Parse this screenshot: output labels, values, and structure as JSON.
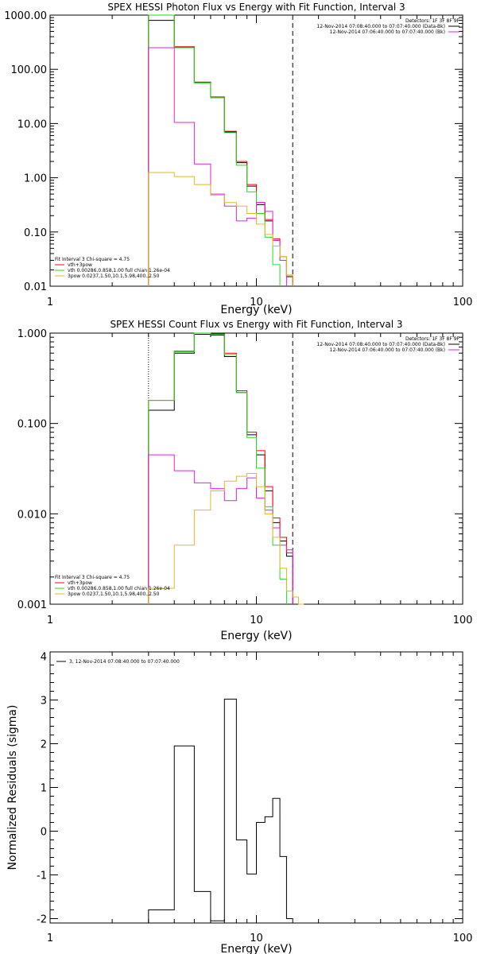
{
  "colors": {
    "black": "#000000",
    "red": "#ff0000",
    "magenta": "#dd22dd",
    "green": "#22dd22",
    "yellow": "#ddbb22"
  },
  "chart_data": [
    {
      "type": "line",
      "title": "SPEX HESSI Photon Flux vs Energy with Fit Function, Interval 3",
      "xlabel": "Energy (keV)",
      "ylabel": "",
      "x_scale": "log",
      "y_scale": "log",
      "xlim": [
        1,
        100
      ],
      "ylim": [
        0.01,
        1000
      ],
      "x_ticks": [
        "1",
        "10",
        "100"
      ],
      "y_ticks": [
        "0.01",
        "0.10",
        "1.00",
        "10.00",
        "100.00",
        "1000.00"
      ],
      "vlines": [
        {
          "x": 3,
          "style": "dotted"
        },
        {
          "x": 15,
          "style": "dashed"
        }
      ],
      "legend_top_right": {
        "header": "Detectors: 1F 3F 8F 9F",
        "entries": [
          {
            "text": "12-Nov-2014 07:08:40.000 to 07:07:40.000 (Data-Bk)",
            "color": "#000000"
          },
          {
            "text": "12-Nov-2014 07:06:40.000 to 07:07:40.000 (Bk)",
            "color": "#dd22dd"
          }
        ]
      },
      "legend_bottom_left": {
        "header": "Fit Interval 3   Chi-square = 4.75",
        "entries": [
          {
            "text": "vth+3pow",
            "color": "#ff0000"
          },
          {
            "text": "vth 0.00286,0.858,1.00  full chian 1.26e-04",
            "color": "#22dd22"
          },
          {
            "text": "3pow 0.0237,1.50,10.1,5.98,400.,2.50",
            "color": "#ddbb22"
          }
        ]
      },
      "edges": [
        3,
        4,
        5,
        6,
        7,
        8,
        9,
        10,
        11,
        12,
        13,
        14,
        15,
        16,
        17,
        18
      ],
      "series": [
        {
          "color": "#000000",
          "values": [
            800,
            260,
            58,
            30,
            7,
            1.9,
            0.7,
            0.32,
            0.16,
            0.07,
            0.03,
            0.015,
            null,
            null,
            null
          ]
        },
        {
          "color": "#ff0000",
          "values": [
            1000,
            260,
            58,
            31,
            7.2,
            2,
            0.75,
            0.35,
            0.17,
            0.075,
            0.035,
            0.016,
            null,
            null,
            null
          ]
        },
        {
          "color": "#22dd22",
          "values": [
            1000,
            250,
            56,
            30,
            6.8,
            1.7,
            0.55,
            0.22,
            0.08,
            0.025,
            null,
            null,
            null,
            null,
            null
          ]
        },
        {
          "color": "#dd22dd",
          "values": [
            250,
            10.5,
            1.8,
            0.5,
            0.3,
            0.16,
            0.18,
            0.35,
            0.24,
            0.07,
            0.03,
            null,
            null,
            null,
            null
          ]
        },
        {
          "color": "#ddbb22",
          "values": [
            1.25,
            1.05,
            0.75,
            0.48,
            0.35,
            0.3,
            0.22,
            0.14,
            0.09,
            0.055,
            0.035,
            0.016,
            null,
            null,
            null
          ]
        }
      ]
    },
    {
      "type": "line",
      "title": "SPEX HESSI Count Flux vs Energy with Fit Function, Interval 3",
      "xlabel": "Energy (keV)",
      "ylabel": "",
      "x_scale": "log",
      "y_scale": "log",
      "xlim": [
        1,
        100
      ],
      "ylim": [
        0.001,
        1
      ],
      "x_ticks": [
        "1",
        "10",
        "100"
      ],
      "y_ticks": [
        "0.001",
        "0.010",
        "0.100",
        "1.000"
      ],
      "vlines": [
        {
          "x": 3,
          "style": "dotted"
        },
        {
          "x": 15,
          "style": "dashed"
        }
      ],
      "legend_top_right": {
        "header": "Detectors: 1F 3F 8F 9F",
        "entries": [
          {
            "text": "12-Nov-2014 07:08:40.000 to 07:07:40.000 (Data-Bk)",
            "color": "#000000"
          },
          {
            "text": "12-Nov-2014 07:06:40.000 to 07:07:40.000 (Bk)",
            "color": "#dd22dd"
          }
        ]
      },
      "legend_bottom_left": {
        "header": "Fit Interval 3   Chi-square = 4.75",
        "entries": [
          {
            "text": "vth+3pow",
            "color": "#ff0000"
          },
          {
            "text": "vth 0.00286,0.858,1.00  full chian 1.26e-04",
            "color": "#22dd22"
          },
          {
            "text": "3pow 0.0237,1.50,10.1,5.98,400.,2.50",
            "color": "#ddbb22"
          }
        ]
      },
      "edges": [
        3,
        4,
        5,
        6,
        7,
        8,
        9,
        10,
        11,
        12,
        13,
        14,
        15,
        16,
        17,
        18
      ],
      "series": [
        {
          "color": "#000000",
          "values": [
            0.14,
            0.6,
            0.97,
            0.95,
            0.55,
            0.22,
            0.075,
            0.045,
            0.018,
            0.008,
            0.005,
            0.0034,
            null,
            null,
            null
          ]
        },
        {
          "color": "#ff0000",
          "values": [
            0.18,
            0.63,
            1.0,
            0.98,
            0.6,
            0.23,
            0.08,
            0.05,
            0.02,
            0.009,
            0.0055,
            0.0037,
            null,
            null,
            null
          ]
        },
        {
          "color": "#22dd22",
          "values": [
            0.18,
            0.62,
            1.0,
            0.97,
            0.58,
            0.22,
            0.07,
            0.032,
            0.012,
            0.0045,
            0.0019,
            null,
            null,
            null,
            null
          ]
        },
        {
          "color": "#dd22dd",
          "values": [
            0.045,
            0.03,
            0.022,
            0.019,
            0.014,
            0.019,
            0.025,
            0.015,
            0.011,
            0.007,
            0.0045,
            0.004,
            null,
            null,
            null
          ]
        },
        {
          "color": "#ddbb22",
          "values": [
            0.0015,
            0.0045,
            0.011,
            0.018,
            0.023,
            0.026,
            0.028,
            0.02,
            0.01,
            0.0055,
            0.0025,
            0.0014,
            0.0012,
            0.001,
            null
          ]
        }
      ]
    },
    {
      "type": "line",
      "title": "",
      "xlabel": "Energy (keV)",
      "ylabel": "Normalized Residuals (sigma)",
      "x_scale": "log",
      "y_scale": "linear",
      "xlim": [
        1,
        100
      ],
      "ylim": [
        -2.1,
        4.1
      ],
      "x_ticks": [
        "1",
        "10",
        "100"
      ],
      "y_ticks": [
        "-2",
        "-1",
        "0",
        "1",
        "2",
        "3",
        "4"
      ],
      "legend_top_left": {
        "entries": [
          {
            "text": "3, 12-Nov-2014 07:08:40.000 to 07:07:40.000",
            "color": "#000000"
          }
        ]
      },
      "edges": [
        3,
        4,
        5,
        6,
        7,
        8,
        9,
        10,
        11,
        12,
        13,
        14,
        15
      ],
      "series": [
        {
          "color": "#000000",
          "values": [
            -1.8,
            1.95,
            -1.38,
            -2.05,
            3.02,
            -0.2,
            -0.98,
            0.2,
            0.33,
            0.75,
            -0.58,
            -2.0
          ]
        }
      ]
    }
  ]
}
